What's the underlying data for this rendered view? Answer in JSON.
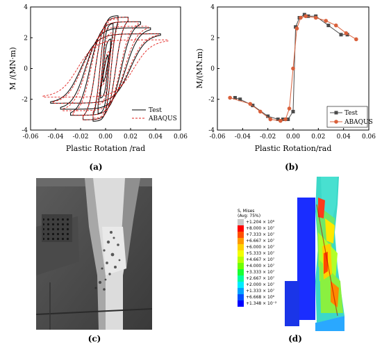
{
  "captions": {
    "a": "(a)",
    "b": "(b)",
    "c": "(c)",
    "d": "(d)"
  },
  "chart_data": [
    {
      "type": "line",
      "xlabel": "Plastic Rotation /rad",
      "ylabel": "M /(MN·m)",
      "xlim": [
        -0.06,
        0.06
      ],
      "ylim": [
        -4,
        4
      ],
      "xticks": [
        "-0.06",
        "-0.04",
        "-0.02",
        "0.00",
        "0.02",
        "0.04",
        "0.06"
      ],
      "yticks": [
        "-4",
        "-2",
        "0",
        "2",
        "4"
      ],
      "legend_position": "bottom-right",
      "series": [
        {
          "name": "Test",
          "style": "solid",
          "color": "#000000",
          "cycles": [
            {
              "a": 0.002,
              "m": 1.0
            },
            {
              "a": 0.004,
              "m": 2.0
            },
            {
              "a": 0.006,
              "m": 3.0
            },
            {
              "a": 0.01,
              "m": 3.5
            },
            {
              "a": 0.018,
              "m": 3.4
            },
            {
              "a": 0.028,
              "m": 3.1
            },
            {
              "a": 0.036,
              "m": 2.7
            },
            {
              "a": 0.044,
              "m": 2.3
            }
          ]
        },
        {
          "name": "ABAQUS",
          "style": "dashed",
          "color": "#e2201c",
          "cycles": [
            {
              "a": 0.003,
              "m": 1.2
            },
            {
              "a": 0.006,
              "m": 2.4
            },
            {
              "a": 0.01,
              "m": 3.3
            },
            {
              "a": 0.018,
              "m": 3.4
            },
            {
              "a": 0.026,
              "m": 3.1
            },
            {
              "a": 0.034,
              "m": 2.8
            },
            {
              "a": 0.042,
              "m": 2.3
            },
            {
              "a": 0.05,
              "m": 1.9
            }
          ]
        }
      ]
    },
    {
      "type": "line",
      "xlabel": "Plastic Rotation/rad",
      "ylabel": "M/(MN.m)",
      "xlim": [
        -0.06,
        0.06
      ],
      "ylim": [
        -4,
        4
      ],
      "xticks": [
        "-0.06",
        "-0.04",
        "-0.02",
        "0.00",
        "0.02",
        "0.04",
        "0.06"
      ],
      "yticks": [
        "-4",
        "-2",
        "0",
        "2",
        "4"
      ],
      "legend_position": "bottom-right",
      "series": [
        {
          "name": "Test",
          "marker": "square",
          "color": "#4a4a4a",
          "x": [
            -0.046,
            -0.042,
            -0.032,
            -0.02,
            -0.012,
            -0.008,
            -0.004,
            0.0,
            0.002,
            0.005,
            0.009,
            0.012,
            0.018,
            0.028,
            0.038,
            0.043
          ],
          "y": [
            -1.9,
            -2.0,
            -2.4,
            -3.1,
            -3.3,
            -3.3,
            -3.3,
            -2.8,
            2.7,
            3.3,
            3.5,
            3.4,
            3.4,
            2.8,
            2.2,
            2.2
          ]
        },
        {
          "name": "ABAQUS",
          "marker": "circle",
          "color": "#d9603b",
          "x": [
            -0.05,
            -0.034,
            -0.026,
            -0.018,
            -0.01,
            -0.006,
            -0.003,
            0.0,
            0.003,
            0.006,
            0.01,
            0.018,
            0.026,
            0.034,
            0.042,
            0.05
          ],
          "y": [
            -1.9,
            -2.3,
            -2.8,
            -3.3,
            -3.4,
            -3.3,
            -2.6,
            0.0,
            2.6,
            3.3,
            3.4,
            3.3,
            3.1,
            2.8,
            2.3,
            1.9
          ]
        }
      ]
    }
  ],
  "fea_legend": {
    "title": "S, Mises",
    "subtitle": "(Avg: 75%)",
    "labels": [
      "+1.204 × 10⁸",
      "+8.000 × 10⁷",
      "+7.333 × 10⁷",
      "+6.667 × 10⁷",
      "+6.000 × 10⁷",
      "+5.333 × 10⁷",
      "+4.667 × 10⁷",
      "+4.000 × 10⁷",
      "+3.333 × 10⁷",
      "+2.667 × 10⁷",
      "+2.000 × 10⁷",
      "+1.333 × 10⁷",
      "+6.668 × 10⁶",
      "+1.348 × 10⁻²"
    ],
    "colors": [
      "#c8c8c8",
      "#ff0000",
      "#ff5000",
      "#ff9a00",
      "#ffd200",
      "#f2ff00",
      "#b9ff00",
      "#6eff00",
      "#19ff32",
      "#00ff9e",
      "#00ecff",
      "#00a2ff",
      "#004dff",
      "#0000ff"
    ]
  }
}
